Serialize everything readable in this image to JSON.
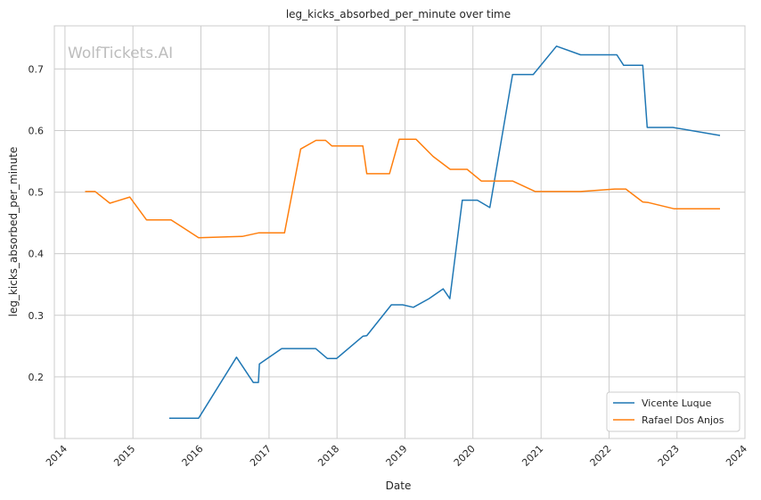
{
  "watermark": "WolfTickets.AI",
  "chart_data": {
    "type": "line",
    "title": "leg_kicks_absorbed_per_minute over time",
    "xlabel": "Date",
    "ylabel": "leg_kicks_absorbed_per_minute",
    "x_ticks": [
      "2014",
      "2015",
      "2016",
      "2017",
      "2018",
      "2019",
      "2020",
      "2021",
      "2022",
      "2023",
      "2024"
    ],
    "y_ticks": [
      "0.2",
      "0.3",
      "0.4",
      "0.5",
      "0.6",
      "0.7"
    ],
    "xlim": [
      "2013-11-05",
      "2024-01-01"
    ],
    "ylim": [
      0.1,
      0.77
    ],
    "grid": true,
    "legend_position": "lower-right",
    "series": [
      {
        "name": "Vicente Luque",
        "color": "#1f77b4",
        "points": [
          [
            "2015-07-15",
            0.133
          ],
          [
            "2015-12-20",
            0.133
          ],
          [
            "2016-07-10",
            0.232
          ],
          [
            "2016-10-08",
            0.191
          ],
          [
            "2016-11-05",
            0.191
          ],
          [
            "2016-11-10",
            0.221
          ],
          [
            "2017-03-10",
            0.246
          ],
          [
            "2017-09-08",
            0.246
          ],
          [
            "2017-11-10",
            0.23
          ],
          [
            "2017-12-30",
            0.23
          ],
          [
            "2018-05-20",
            0.266
          ],
          [
            "2018-06-10",
            0.267
          ],
          [
            "2018-10-20",
            0.317
          ],
          [
            "2018-12-20",
            0.317
          ],
          [
            "2019-02-15",
            0.313
          ],
          [
            "2019-05-10",
            0.327
          ],
          [
            "2019-07-25",
            0.343
          ],
          [
            "2019-08-30",
            0.327
          ],
          [
            "2019-11-05",
            0.487
          ],
          [
            "2020-01-25",
            0.487
          ],
          [
            "2020-04-01",
            0.475
          ],
          [
            "2020-08-01",
            0.691
          ],
          [
            "2020-11-20",
            0.691
          ],
          [
            "2021-03-25",
            0.737
          ],
          [
            "2021-08-01",
            0.723
          ],
          [
            "2022-02-12",
            0.723
          ],
          [
            "2022-03-20",
            0.706
          ],
          [
            "2022-07-01",
            0.706
          ],
          [
            "2022-07-25",
            0.605
          ],
          [
            "2022-12-10",
            0.605
          ],
          [
            "2023-08-20",
            0.592
          ]
        ]
      },
      {
        "name": "Rafael Dos Anjos",
        "color": "#ff7f0e",
        "points": [
          [
            "2014-04-19",
            0.501
          ],
          [
            "2014-06-12",
            0.501
          ],
          [
            "2014-08-30",
            0.482
          ],
          [
            "2014-12-15",
            0.492
          ],
          [
            "2015-03-15",
            0.455
          ],
          [
            "2015-07-25",
            0.455
          ],
          [
            "2015-12-20",
            0.426
          ],
          [
            "2016-08-10",
            0.428
          ],
          [
            "2016-11-08",
            0.434
          ],
          [
            "2017-03-25",
            0.434
          ],
          [
            "2017-06-20",
            0.57
          ],
          [
            "2017-09-10",
            0.584
          ],
          [
            "2017-11-01",
            0.584
          ],
          [
            "2017-12-05",
            0.575
          ],
          [
            "2018-05-20",
            0.575
          ],
          [
            "2018-06-10",
            0.53
          ],
          [
            "2018-10-10",
            0.53
          ],
          [
            "2018-12-01",
            0.586
          ],
          [
            "2019-03-01",
            0.586
          ],
          [
            "2019-06-01",
            0.558
          ],
          [
            "2019-09-01",
            0.537
          ],
          [
            "2019-12-01",
            0.537
          ],
          [
            "2020-02-15",
            0.518
          ],
          [
            "2020-08-01",
            0.518
          ],
          [
            "2020-12-01",
            0.501
          ],
          [
            "2021-08-01",
            0.501
          ],
          [
            "2022-02-01",
            0.505
          ],
          [
            "2022-04-01",
            0.505
          ],
          [
            "2022-07-01",
            0.484
          ],
          [
            "2022-08-01",
            0.483
          ],
          [
            "2022-12-15",
            0.473
          ],
          [
            "2023-08-20",
            0.473
          ]
        ]
      }
    ]
  }
}
